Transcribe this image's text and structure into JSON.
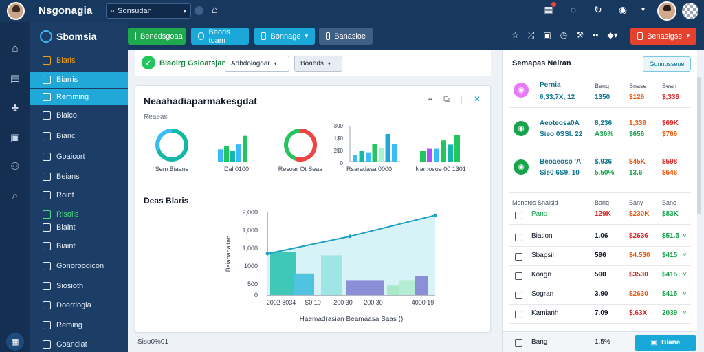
{
  "topbar": {
    "brand": "Nsgonagia",
    "search_value": "Sonsudan",
    "icons": [
      "calendar-icon",
      "chat-icon",
      "refresh-icon",
      "settings-icon"
    ]
  },
  "sidebar": {
    "title": "Sbomsia",
    "items": [
      {
        "label": "Biaris",
        "style": "orange"
      },
      {
        "label": "Biarris",
        "style": "active"
      },
      {
        "label": "Remming",
        "style": "active"
      },
      {
        "label": "Biaico",
        "style": "normal"
      },
      {
        "label": "Biaric",
        "style": "normal"
      },
      {
        "label": "Goaicort",
        "style": "normal"
      },
      {
        "label": "Beians",
        "style": "normal"
      },
      {
        "label": "Roint",
        "style": "normal"
      },
      {
        "label": "Risoils",
        "style": "green"
      },
      {
        "label": "Biaint",
        "style": "normal"
      },
      {
        "label": "Biaint",
        "style": "normal"
      },
      {
        "label": "Gonoroodicon",
        "style": "normal"
      },
      {
        "label": "Siosioth",
        "style": "normal"
      },
      {
        "label": "Doerriogia",
        "style": "normal"
      },
      {
        "label": "Reming",
        "style": "normal"
      },
      {
        "label": "Goandiat",
        "style": "normal"
      }
    ]
  },
  "toolbar": {
    "btn1": "Benedsgoaa",
    "btn2": "Beoris toam",
    "btn3": "Bonnage",
    "btn4": "Banasioe",
    "btn_right": "Benasigse"
  },
  "content": {
    "status": "Biaoirg Gsloatsjan",
    "select1": "Adbdoiagoar",
    "select2": "Boaeds",
    "card_title": "Neaahadiaparmakesgdat",
    "card_sub": "Reaeas",
    "mini_labels": [
      "Sem Biaans",
      "Dal 0100",
      "Resoar Ot Seaa",
      "Rsaradasa 0000",
      "Namosoe 00 1301"
    ],
    "section_title": "Deas Blaris",
    "footer": "Siso0%01"
  },
  "chart_data": [
    {
      "type": "pie",
      "title": "Sem Biaans",
      "colors": [
        "#14b8a6",
        "#38bdf8"
      ],
      "values": [
        70,
        30
      ]
    },
    {
      "type": "bar",
      "title": "Dal 0100",
      "colors": [
        "#38bdf8",
        "#22c55e",
        "#14b8a6"
      ],
      "values": [
        20,
        25,
        18,
        28,
        42
      ]
    },
    {
      "type": "pie",
      "title": "Resoar Ot Seaa",
      "colors": [
        "#ef4444",
        "#22c55e"
      ],
      "values": [
        55,
        45
      ]
    },
    {
      "type": "bar",
      "title": "Rsaradasa 0000",
      "yticks": [
        "300",
        "1$0",
        "2$0",
        "0"
      ],
      "ylim": [
        0,
        300
      ],
      "values": [
        60,
        90,
        80,
        150,
        120,
        240,
        150
      ]
    },
    {
      "type": "bar",
      "title": "Namosoe 00 1301",
      "colors": [
        "#22c55e",
        "#a855f7",
        "#38bdf8"
      ],
      "values": [
        25,
        30,
        30,
        50,
        40,
        62
      ]
    },
    {
      "type": "bar",
      "title": "Deas Blaris",
      "xlabel": "Haemadrasian Beamaasa Saas ()",
      "ylabel": "Baiananaitan",
      "yticks": [
        "2,000",
        "1,000",
        "1,000",
        "1000",
        "500",
        "0"
      ],
      "xticks": [
        "2002 8034",
        "S0 10",
        "200 30",
        "200.30",
        "4000 19"
      ],
      "ylim": [
        0,
        2000
      ],
      "bars": [
        {
          "value": 1050,
          "color": "#3fc8b8"
        },
        {
          "value": 520,
          "color": "#4fc3e0"
        },
        {
          "value": 960,
          "color": "#9ee6e6"
        },
        {
          "value": 360,
          "color": "#8b8fd8"
        },
        {
          "value": 230,
          "color": "#a9e8c8"
        },
        {
          "value": 360,
          "color": "#b4ecd4"
        },
        {
          "value": 450,
          "color": "#8b8fd8"
        }
      ],
      "line": [
        1000,
        1420,
        1930
      ]
    }
  ],
  "right_panel": {
    "title": "Semapas Neiran",
    "button": "Gonnosseue",
    "headers": [
      "Bang",
      "Snase",
      "Sean"
    ],
    "top_rows": [
      {
        "name": "Pernia",
        "sub": "6,33,7X, 12",
        "a": "1350",
        "b": "$126",
        "c": "$,336",
        "icon_color": "#e879f9"
      },
      {
        "name": "Aeoteosa0A",
        "sub": "Sieo 0SSl. 22",
        "a": "8,236",
        "b": "1,339",
        "c": "$69K",
        "icon_color": "#16a34a"
      },
      {
        "name": "Beoaeoso 'A",
        "sub": "Sie0 6S9. 10",
        "a": "$,936",
        "b": "$45K",
        "c": "$598",
        "icon_color": "#16a34a"
      }
    ],
    "top_rows_line2": [
      {
        "a": "",
        "b": "",
        "c": ""
      },
      {
        "a": "A36%",
        "b": "$656",
        "c": "$766"
      },
      {
        "a": "5.50%",
        "b": "13.6",
        "c": "$646"
      }
    ],
    "table_headers": [
      "Monotos Shalsid",
      "Bang",
      "Bany",
      "Bane"
    ],
    "table_rows": [
      {
        "name": "Pano",
        "a": "129K",
        "b": "$230K",
        "c": "$83K"
      },
      {
        "name": "Biation",
        "a": "1.06",
        "b": "$2636",
        "c": "$51.5"
      },
      {
        "name": "Sbapsil",
        "a": "596",
        "b": "$4.530",
        "c": "$415"
      },
      {
        "name": "Koagn",
        "a": "590",
        "b": "$3530",
        "c": "$415"
      },
      {
        "name": "Sogran",
        "a": "3.90",
        "b": "$2630",
        "c": "$415"
      },
      {
        "name": "Kamianh",
        "a": "7.09",
        "b": "$.63X",
        "c": "2039"
      }
    ],
    "footer_row": {
      "name": "Bang",
      "a": "1.5%"
    },
    "footer_button": "Biane"
  },
  "colors": {
    "topbar": "#17385f",
    "sidebar": "#1b3d66",
    "accent": "#1fa8d8",
    "green": "#16a34a",
    "red": "#dc2626"
  }
}
